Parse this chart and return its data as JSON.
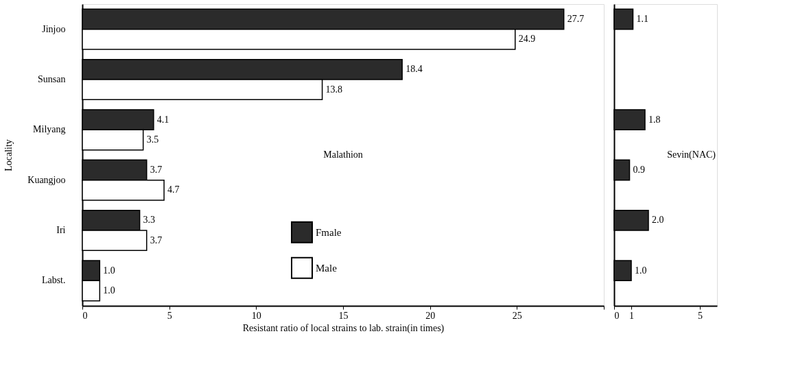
{
  "chart_data": [
    {
      "type": "bar",
      "orientation": "horizontal",
      "ylabel": "Locality",
      "xlabel": "Resistant ratio of local strains to lab. strain(in times)",
      "categories": [
        "Jinjoo",
        "Sunsan",
        "Milyang",
        "Kuangjoo",
        "Iri",
        "Labst."
      ],
      "series": [
        {
          "name": "Fmale",
          "color": "#2b2b2b",
          "values": [
            27.7,
            18.4,
            4.1,
            3.7,
            3.3,
            1.0
          ],
          "value_labels": [
            "27.7",
            "18.4",
            "4.1",
            "3.7",
            "3.3",
            "1.0"
          ]
        },
        {
          "name": "Male",
          "color": "#ffffff",
          "values": [
            24.9,
            13.8,
            3.5,
            4.7,
            3.7,
            1.0
          ],
          "value_labels": [
            "24.9",
            "13.8",
            "3.5",
            "4.7",
            "3.7",
            "1.0"
          ]
        }
      ],
      "xlim": [
        0,
        30
      ],
      "xticks": [
        0,
        5,
        10,
        15,
        20,
        25,
        {
          "value": 30,
          "label": null
        }
      ],
      "legend": "bottom",
      "grid": false,
      "annotations": [
        "Malathion"
      ]
    },
    {
      "type": "bar",
      "orientation": "horizontal",
      "categories": [
        null,
        null,
        null,
        null,
        null,
        null
      ],
      "series": [
        {
          "color": "#2b2b2b",
          "values": [
            1.1,
            null,
            1.8,
            0.9,
            2.0,
            1.0
          ],
          "value_labels": [
            "1.1",
            null,
            "1.8",
            "0.9",
            "2.0",
            "1.0"
          ]
        }
      ],
      "xlim": [
        0,
        6
      ],
      "xticks": [
        0,
        1,
        5
      ],
      "legend": false,
      "grid": false,
      "tick_labels": "x",
      "annotations": [
        "Sevin(NAC)"
      ]
    }
  ]
}
